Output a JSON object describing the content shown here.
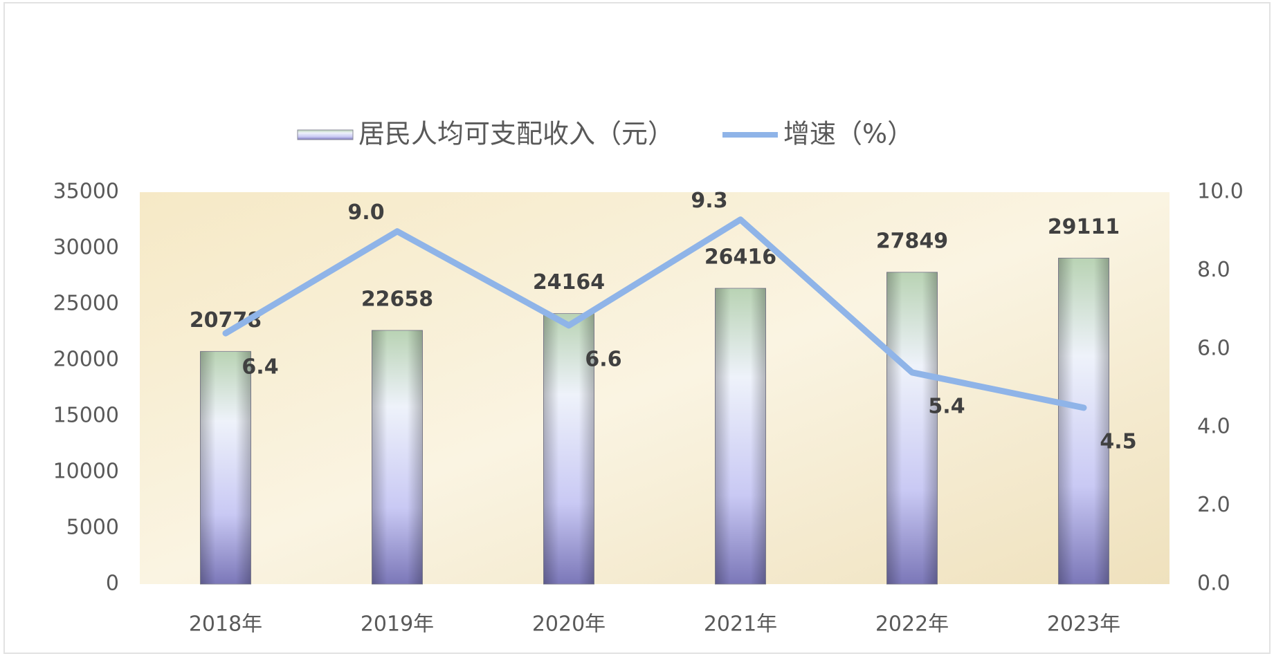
{
  "chart_data": {
    "type": "bar-line",
    "categories": [
      "2018年",
      "2019年",
      "2020年",
      "2021年",
      "2022年",
      "2023年"
    ],
    "series": [
      {
        "name": "居民人均可支配收入（元）",
        "type": "bar",
        "color": "#b9b9ee",
        "values": [
          20778,
          22658,
          24164,
          26416,
          27849,
          29111
        ]
      },
      {
        "name": "增速（%）",
        "type": "line",
        "axis": "y2",
        "color": "#8fb4e8",
        "values": [
          6.4,
          9.0,
          6.6,
          9.3,
          5.4,
          4.5
        ],
        "value_labels": [
          "6.4",
          "9.0",
          "6.6",
          "9.3",
          "5.4",
          "4.5"
        ]
      }
    ],
    "ylim": [
      0,
      35000
    ],
    "yticks": [
      0,
      5000,
      10000,
      15000,
      20000,
      25000,
      30000,
      35000
    ],
    "y2lim": [
      0,
      10
    ],
    "y2ticks": [
      {
        "value": 0,
        "label": "0.0"
      },
      {
        "value": 2,
        "label": "2.0"
      },
      {
        "value": 4,
        "label": "4.0"
      },
      {
        "value": 6,
        "label": "6.0"
      },
      {
        "value": 8,
        "label": "8.0"
      },
      {
        "value": 10,
        "label": "10.0"
      }
    ],
    "legend": "top"
  }
}
